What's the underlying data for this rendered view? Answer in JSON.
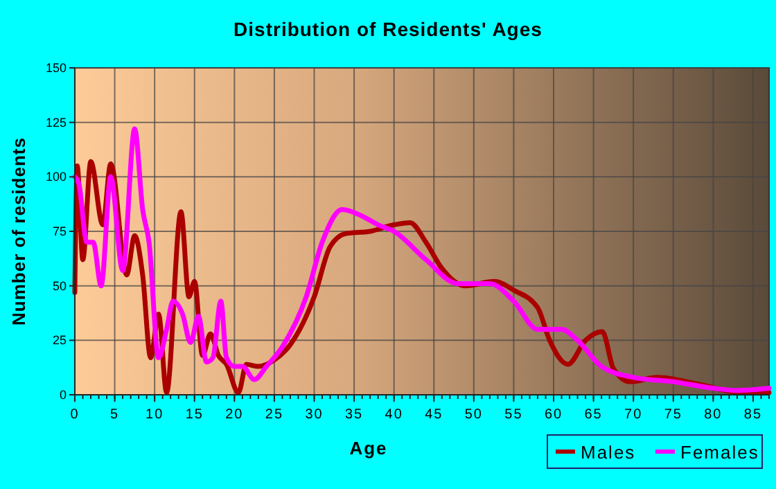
{
  "chart_data": {
    "type": "line",
    "title": "Distribution of Residents' Ages",
    "xlabel": "Age",
    "ylabel": "Number of residents",
    "xlim": [
      0,
      87
    ],
    "xticks": [
      0,
      5,
      10,
      15,
      20,
      25,
      30,
      35,
      40,
      45,
      50,
      55,
      60,
      65,
      70,
      75,
      80,
      85
    ],
    "ylim": [
      0,
      150
    ],
    "yticks": [
      0,
      25,
      50,
      75,
      100,
      125,
      150
    ],
    "grid": true,
    "legend": "bottom right",
    "line_style": "solid",
    "marker": "none",
    "series": [
      {
        "name": "Males",
        "color": "#aa0000",
        "x": [
          0,
          0.3,
          1,
          2,
          3.5,
          4.5,
          6.5,
          7.5,
          8.5,
          9.5,
          10.5,
          11.5,
          13.3,
          14.3,
          15,
          16,
          17,
          18,
          19,
          20.5,
          21.5,
          23,
          25,
          27,
          30,
          32,
          34,
          37,
          40,
          42,
          44,
          46,
          48.9,
          52.6,
          55,
          58,
          59.5,
          61.8,
          64,
          66.1,
          67.5,
          69.6,
          73,
          78,
          83.5,
          87
        ],
        "values": [
          47,
          105,
          62,
          107,
          78,
          106,
          55,
          73,
          55,
          17,
          37,
          1,
          84,
          45,
          52,
          18,
          28,
          18,
          14,
          1,
          14,
          13,
          16,
          23,
          45,
          68,
          74,
          75,
          78,
          79,
          70,
          58,
          50,
          52,
          48,
          40,
          25,
          14,
          25,
          29,
          12,
          6,
          8,
          5,
          1,
          1
        ]
      },
      {
        "name": "Females",
        "color": "#ff00ff",
        "x": [
          0,
          0.5,
          1.5,
          2.3,
          3.3,
          4.5,
          6,
          7.5,
          8.5,
          9.3,
          10.5,
          11.5,
          12.3,
          13.5,
          14.5,
          15.5,
          16.5,
          17.3,
          18.3,
          19,
          20,
          21,
          22.5,
          24,
          26,
          29,
          31,
          33.5,
          36,
          38,
          40,
          44,
          48,
          52,
          55,
          58,
          61,
          63,
          66,
          70,
          75,
          80,
          83,
          87
        ],
        "values": [
          100,
          97,
          70,
          70,
          50,
          100,
          57,
          122,
          85,
          70,
          17,
          30,
          43,
          37,
          24,
          36,
          15,
          17,
          43,
          17,
          13,
          13,
          7,
          13,
          22,
          45,
          70,
          85,
          82,
          78,
          75,
          62,
          51,
          51,
          43,
          30,
          30,
          25,
          13,
          8,
          6,
          3,
          2,
          3
        ]
      }
    ]
  }
}
